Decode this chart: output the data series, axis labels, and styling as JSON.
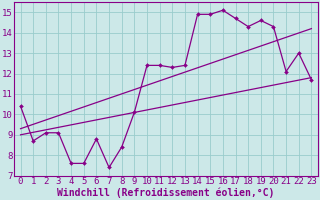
{
  "title": "",
  "xlabel": "Windchill (Refroidissement éolien,°C)",
  "ylabel": "",
  "xlim": [
    -0.5,
    23.5
  ],
  "ylim": [
    7,
    15.5
  ],
  "xticks": [
    0,
    1,
    2,
    3,
    4,
    5,
    6,
    7,
    8,
    9,
    10,
    11,
    12,
    13,
    14,
    15,
    16,
    17,
    18,
    19,
    20,
    21,
    22,
    23
  ],
  "yticks": [
    7,
    8,
    9,
    10,
    11,
    12,
    13,
    14,
    15
  ],
  "bg_color": "#cce8e8",
  "grid_color": "#99cccc",
  "line_color": "#880088",
  "data_x": [
    0,
    1,
    2,
    3,
    4,
    5,
    6,
    7,
    8,
    9,
    10,
    11,
    12,
    13,
    14,
    15,
    16,
    17,
    18,
    19,
    20,
    21,
    22,
    23
  ],
  "data_y": [
    10.4,
    8.7,
    9.1,
    9.1,
    7.6,
    7.6,
    8.8,
    7.4,
    8.4,
    10.1,
    12.4,
    12.4,
    12.3,
    12.4,
    14.9,
    14.9,
    15.1,
    14.7,
    14.3,
    14.6,
    14.3,
    12.1,
    13.0,
    11.7
  ],
  "trend1_x": [
    0,
    23
  ],
  "trend1_y": [
    9.0,
    11.8
  ],
  "trend2_x": [
    0,
    23
  ],
  "trend2_y": [
    9.3,
    14.2
  ],
  "font_size": 6.5,
  "xlabel_fontsize": 7.0
}
